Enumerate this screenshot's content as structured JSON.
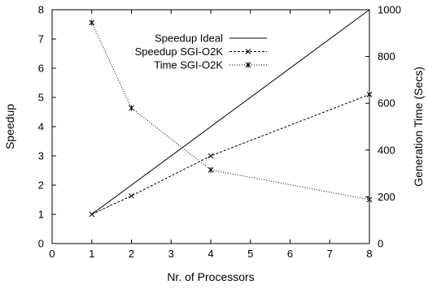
{
  "chart_data": {
    "type": "line",
    "xlabel": "Nr. of Processors",
    "ylabel": "Speedup",
    "y2label": "Generation Time (Secs)",
    "xlim": [
      0,
      8
    ],
    "ylim": [
      0,
      8
    ],
    "y2lim": [
      0,
      1000
    ],
    "xticks": [
      0,
      1,
      2,
      3,
      4,
      5,
      6,
      7,
      8
    ],
    "yticks": [
      0,
      1,
      2,
      3,
      4,
      5,
      6,
      7,
      8
    ],
    "y2ticks": [
      0,
      200,
      400,
      600,
      800,
      1000
    ],
    "grid": false,
    "legend_position": "top-right",
    "series": [
      {
        "name": "Speedup Ideal",
        "axis": "left",
        "style": "solid",
        "marker": "none",
        "x": [
          1,
          8
        ],
        "y": [
          1,
          8
        ]
      },
      {
        "name": "Speedup SGI-O2K",
        "axis": "left",
        "style": "dashed",
        "marker": "x",
        "x": [
          1,
          2,
          4,
          8
        ],
        "y": [
          1.0,
          1.63,
          3.0,
          5.1
        ]
      },
      {
        "name": "Time SGI-O2K",
        "axis": "right",
        "style": "dotted",
        "marker": "asterisk",
        "x": [
          1,
          2,
          4,
          8
        ],
        "y": [
          945,
          580,
          315,
          188
        ]
      }
    ]
  }
}
